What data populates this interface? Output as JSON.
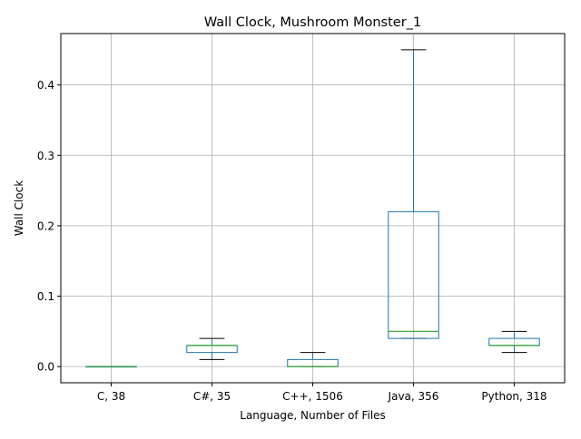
{
  "chart_data": {
    "type": "box",
    "title": "Wall Clock, Mushroom Monster_1",
    "xlabel": "Language, Number of Files",
    "ylabel": "Wall Clock",
    "ylim": [
      -0.023,
      0.473
    ],
    "yticks": [
      0.0,
      0.1,
      0.2,
      0.3,
      0.4
    ],
    "ytick_labels": [
      "0.0",
      "0.1",
      "0.2",
      "0.3",
      "0.4"
    ],
    "grid": true,
    "categories": [
      "C, 38",
      "C#, 35",
      "C++, 1506",
      "Java, 356",
      "Python, 318"
    ],
    "boxes": [
      {
        "whisker_low": 0.0,
        "q1": 0.0,
        "median": 0.0,
        "q3": 0.0,
        "whisker_high": 0.0
      },
      {
        "whisker_low": 0.01,
        "q1": 0.02,
        "median": 0.03,
        "q3": 0.03,
        "whisker_high": 0.04
      },
      {
        "whisker_low": 0.0,
        "q1": 0.0,
        "median": 0.0,
        "q3": 0.01,
        "whisker_high": 0.02
      },
      {
        "whisker_low": 0.04,
        "q1": 0.04,
        "median": 0.05,
        "q3": 0.22,
        "whisker_high": 0.45
      },
      {
        "whisker_low": 0.02,
        "q1": 0.03,
        "median": 0.03,
        "q3": 0.04,
        "whisker_high": 0.05
      }
    ],
    "colors": {
      "box": "#1f77b4",
      "median": "#2ca02c",
      "whisker_cap": "#000000",
      "grid": "#b0b0b0",
      "axes": "#000000"
    }
  }
}
